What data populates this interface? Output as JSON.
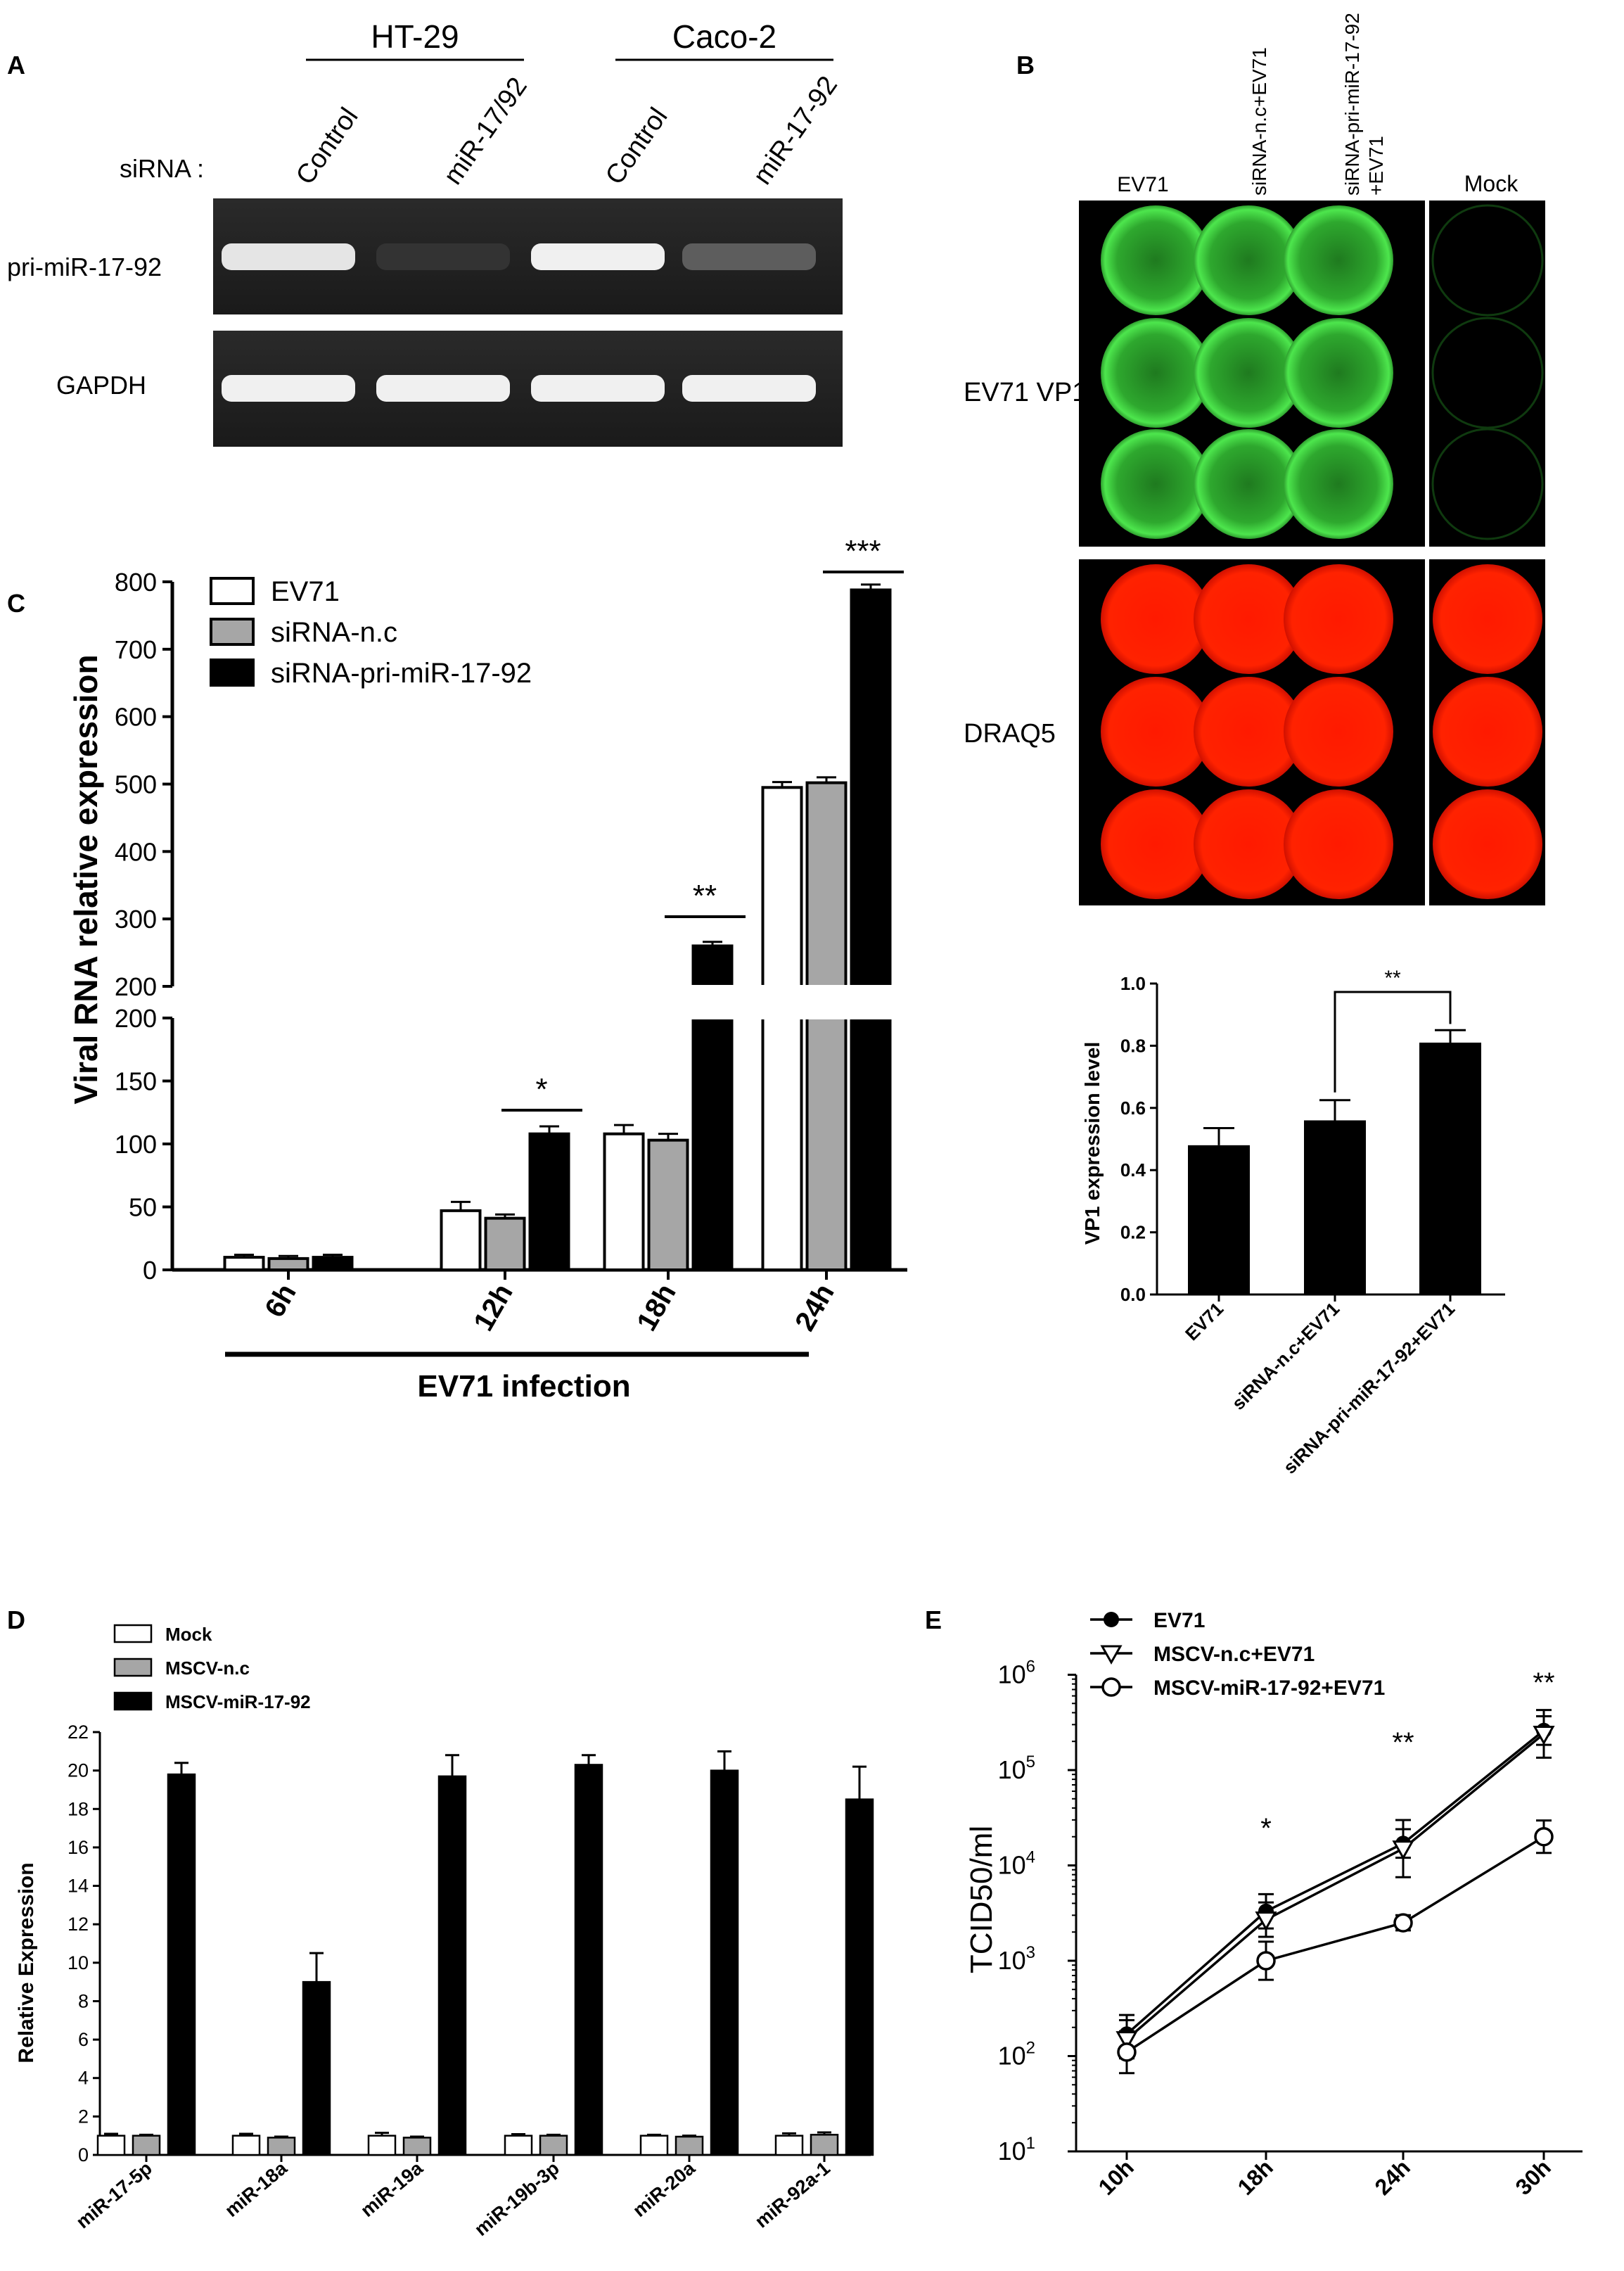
{
  "panel_labels": {
    "a": "A",
    "b": "B",
    "c": "C",
    "d": "D",
    "e": "E"
  },
  "panel_a": {
    "groups": [
      "HT-29",
      "Caco-2"
    ],
    "sirna_label": "siRNA :",
    "lanes": [
      "Control",
      "miR-17/92",
      "Control",
      "miR-17-92"
    ],
    "rows": [
      "pri-miR-17-92",
      "GAPDH"
    ],
    "band_intensity": {
      "pri-miR-17-92": [
        0.9,
        0.05,
        0.95,
        0.25
      ],
      "GAPDH": [
        0.95,
        0.95,
        0.95,
        0.95
      ]
    }
  },
  "panel_b": {
    "columns": [
      "EV71",
      "siRNA-n.c+EV71",
      "siRNA-pri-miR-17-92\n+EV71",
      "Mock"
    ],
    "rows": [
      "EV71 VP1",
      "DRAQ5"
    ],
    "colors": {
      "vp1": "#33cc33",
      "draq5": "#ff1a00",
      "background": "#000000"
    }
  },
  "chart_data": [
    {
      "id": "C",
      "type": "bar",
      "ylabel": "Viral RNA relative expression",
      "xlabel": "EV71 infection",
      "categories": [
        "6h",
        "12h",
        "18h",
        "24h"
      ],
      "axis_break": {
        "lower": [
          0,
          200
        ],
        "upper": [
          200,
          800
        ]
      },
      "lower_ticks": [
        0,
        50,
        100,
        150,
        200
      ],
      "upper_ticks": [
        200,
        300,
        400,
        500,
        600,
        700,
        800
      ],
      "series": [
        {
          "name": "EV71",
          "color": "#ffffff",
          "values": [
            10,
            47,
            108,
            495
          ],
          "errors": [
            2,
            7,
            7,
            8
          ]
        },
        {
          "name": "siRNA-n.c",
          "color": "#a6a6a6",
          "values": [
            9,
            41,
            103,
            502
          ],
          "errors": [
            2,
            3,
            5,
            8
          ]
        },
        {
          "name": "siRNA-pri-miR-17-92",
          "color": "#000000",
          "values": [
            10,
            108,
            260,
            788
          ],
          "errors": [
            2,
            6,
            6,
            8
          ]
        }
      ],
      "significance": [
        "",
        "*",
        "**",
        "***"
      ]
    },
    {
      "id": "B-bar",
      "type": "bar",
      "ylabel": "VP1 expression level",
      "categories": [
        "EV71",
        "siRNA-n.c+EV71",
        "siRNA-pri-miR-17-92+EV71"
      ],
      "values": [
        0.48,
        0.56,
        0.81
      ],
      "errors": [
        0.055,
        0.065,
        0.04
      ],
      "ylim": [
        0,
        1.0
      ],
      "ticks": [
        0.0,
        0.2,
        0.4,
        0.6,
        0.8,
        1.0
      ],
      "significance": "**"
    },
    {
      "id": "D",
      "type": "bar",
      "ylabel": "Relative Expression",
      "categories": [
        "miR-17-5p",
        "miR-18a",
        "miR-19a",
        "miR-19b-3p",
        "miR-20a",
        "miR-92a-1"
      ],
      "ylim": [
        0,
        22
      ],
      "ticks": [
        0,
        2,
        4,
        6,
        8,
        10,
        12,
        14,
        16,
        18,
        20,
        22
      ],
      "series": [
        {
          "name": "Mock",
          "color": "#ffffff",
          "values": [
            1,
            1,
            1,
            1,
            1,
            1
          ],
          "errors": [
            0.1,
            0.1,
            0.15,
            0.08,
            0.05,
            0.12
          ]
        },
        {
          "name": "MSCV-n.c",
          "color": "#a6a6a6",
          "values": [
            1,
            0.9,
            0.9,
            1,
            0.95,
            1.05
          ],
          "errors": [
            0.05,
            0.05,
            0.05,
            0.05,
            0.05,
            0.12
          ]
        },
        {
          "name": "MSCV-miR-17-92",
          "color": "#000000",
          "values": [
            19.8,
            9.0,
            19.7,
            20.3,
            20.0,
            18.5
          ],
          "errors": [
            0.6,
            1.5,
            1.1,
            0.5,
            1.0,
            1.7
          ]
        }
      ]
    },
    {
      "id": "E",
      "type": "line",
      "ylabel": "TCID50/ml",
      "scale": "log",
      "ylim": [
        10,
        1000000
      ],
      "ticks": [
        {
          "base": "10",
          "exp": "1"
        },
        {
          "base": "10",
          "exp": "2"
        },
        {
          "base": "10",
          "exp": "3"
        },
        {
          "base": "10",
          "exp": "4"
        },
        {
          "base": "10",
          "exp": "5"
        },
        {
          "base": "10",
          "exp": "6"
        }
      ],
      "categories": [
        "10h",
        "18h",
        "24h",
        "30h"
      ],
      "series": [
        {
          "name": "EV71",
          "marker": "filled-circle",
          "values": [
            170,
            3300,
            17000,
            260000
          ],
          "errors_log": [
            0.2,
            0.18,
            0.15,
            0.15
          ]
        },
        {
          "name": "MSCV-n.c+EV71",
          "marker": "open-triangle",
          "values": [
            150,
            2700,
            15000,
            240000
          ],
          "errors_log": [
            0.2,
            0.18,
            0.3,
            0.25
          ]
        },
        {
          "name": "MSCV-miR-17-92+EV71",
          "marker": "open-circle",
          "values": [
            110,
            1000,
            2500,
            20000
          ],
          "errors_log": [
            0.22,
            0.2,
            0.08,
            0.17
          ]
        }
      ],
      "significance": [
        "",
        "*",
        "**",
        "**"
      ]
    }
  ]
}
